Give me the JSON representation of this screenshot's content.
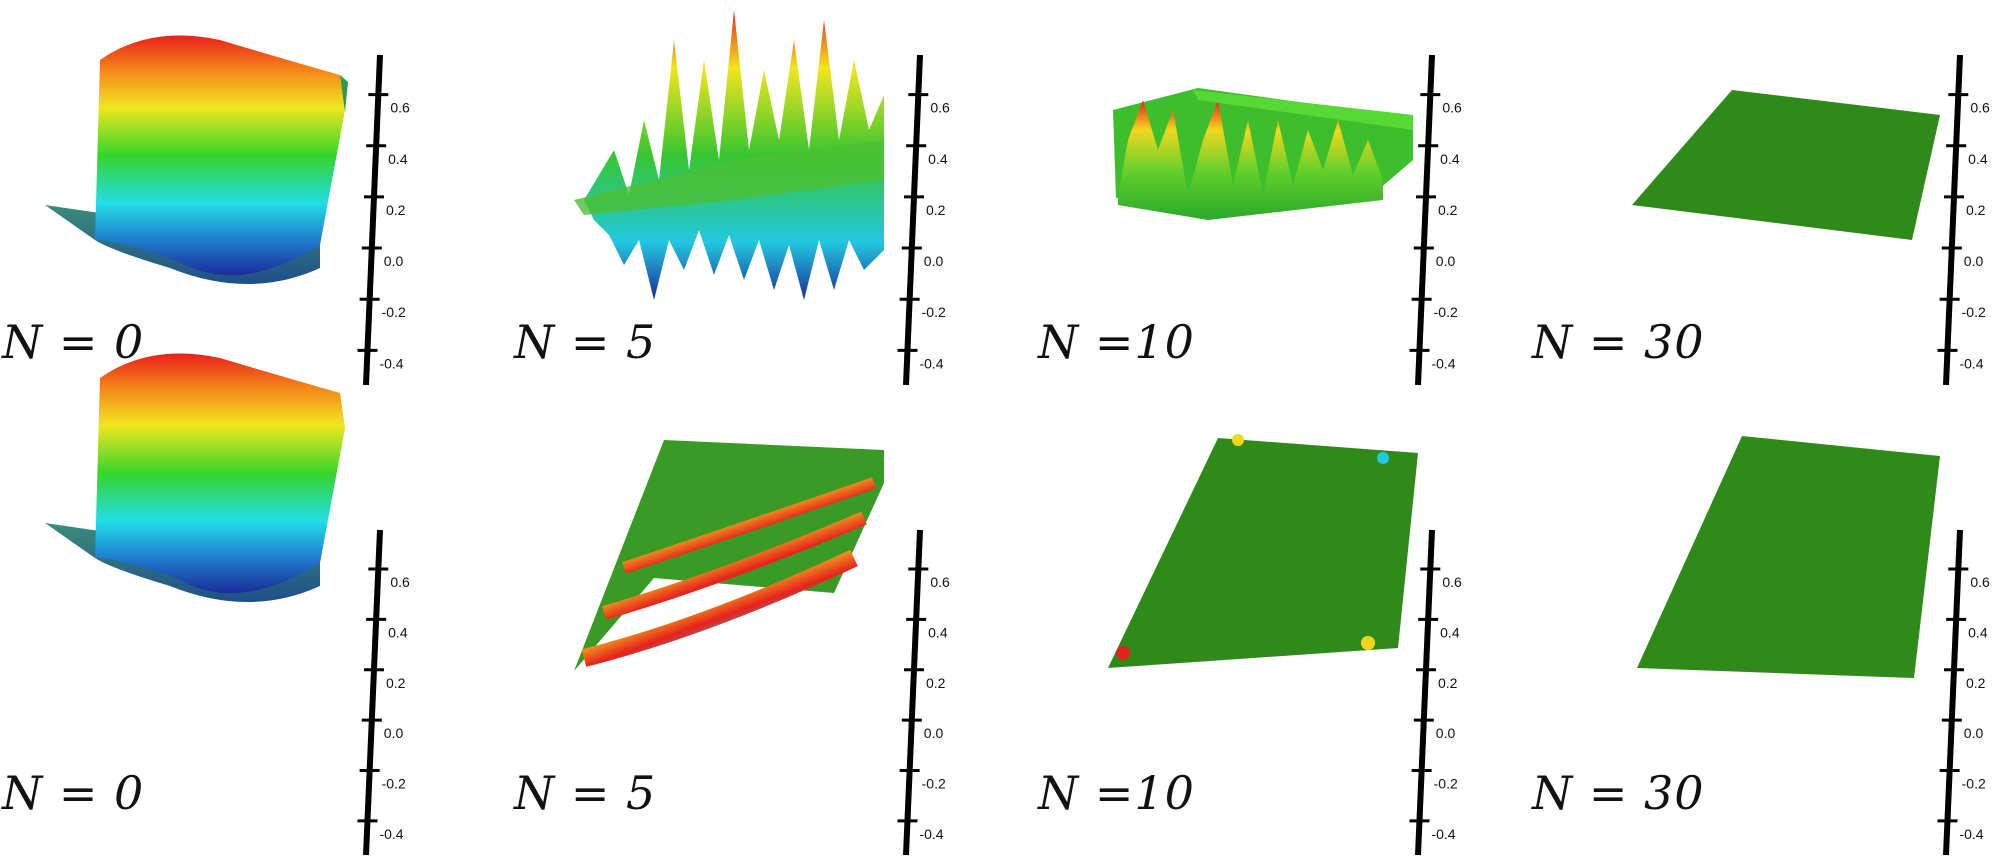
{
  "colors": {
    "surface_red": "#e8211c",
    "surface_yellow": "#f1e61e",
    "surface_green": "#1ea81e",
    "flat_green": "#2f8a1a",
    "surface_cyan": "#22dde8",
    "surface_blue": "#1a2d9a",
    "axis": "#000000"
  },
  "axis_ticks": [
    "0.6",
    "0.4",
    "0.2",
    "0.0",
    "-0.2",
    "-0.4"
  ],
  "rows": [
    {
      "panels": [
        {
          "label": "N = 0",
          "kind": "ramp"
        },
        {
          "label": "N = 5",
          "kind": "spiky"
        },
        {
          "label": "N =10",
          "kind": "ridges"
        },
        {
          "label": "N = 30",
          "kind": "flat"
        }
      ]
    },
    {
      "panels": [
        {
          "label": "N = 0",
          "kind": "ramp"
        },
        {
          "label": "N = 5",
          "kind": "rippled"
        },
        {
          "label": "N =10",
          "kind": "flat-edges"
        },
        {
          "label": "N = 30",
          "kind": "flat"
        }
      ]
    }
  ]
}
